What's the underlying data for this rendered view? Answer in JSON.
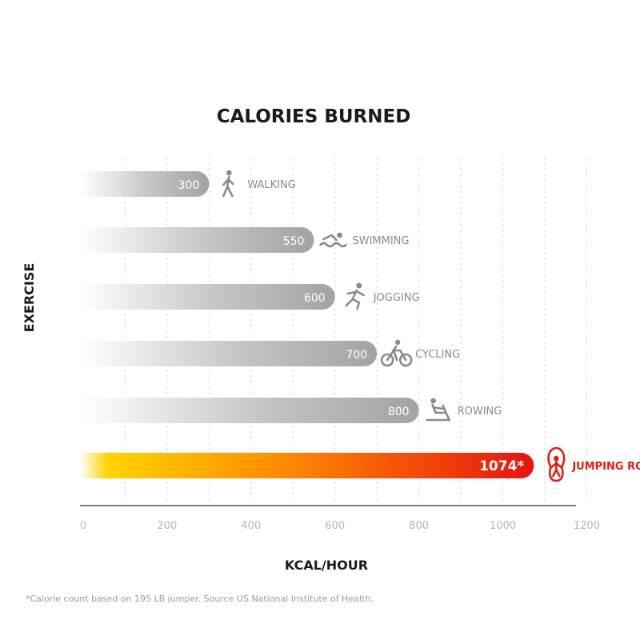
{
  "chart_data": {
    "type": "bar",
    "orientation": "horizontal",
    "title": "CALORIES BURNED",
    "xlabel": "KCAL/HOUR",
    "ylabel": "EXERCISE",
    "xlim": [
      0,
      1200
    ],
    "xticks": [
      0,
      200,
      400,
      600,
      800,
      1000,
      1200
    ],
    "grid": true,
    "categories": [
      "WALKING",
      "SWIMMING",
      "JOGGING",
      "CYCLING",
      "ROWING",
      "JUMPING ROPE"
    ],
    "values": [
      300,
      550,
      600,
      700,
      800,
      1074
    ],
    "value_labels": [
      "300",
      "550",
      "600",
      "700",
      "800",
      "1074*"
    ],
    "icons": [
      "walking-icon",
      "swimming-icon",
      "jogging-icon",
      "cycling-icon",
      "rowing-icon",
      "jumping-rope-icon"
    ],
    "highlight_index": 5,
    "footnote": "*Calorie count based on 195 LB jumper. Source US National Institute of Health."
  },
  "colors": {
    "bar_gray": "#a7a7a7",
    "bar_highlight_start": "#ffd400",
    "bar_highlight_mid": "#ff8a00",
    "bar_highlight_end": "#e8130f",
    "label_gray": "#8a8a8a",
    "label_highlight": "#e01d12",
    "title": "#1a1a1a",
    "axis": "#7a7a7a",
    "grid": "#d9d9d9",
    "tick": "#b5b5b5"
  }
}
